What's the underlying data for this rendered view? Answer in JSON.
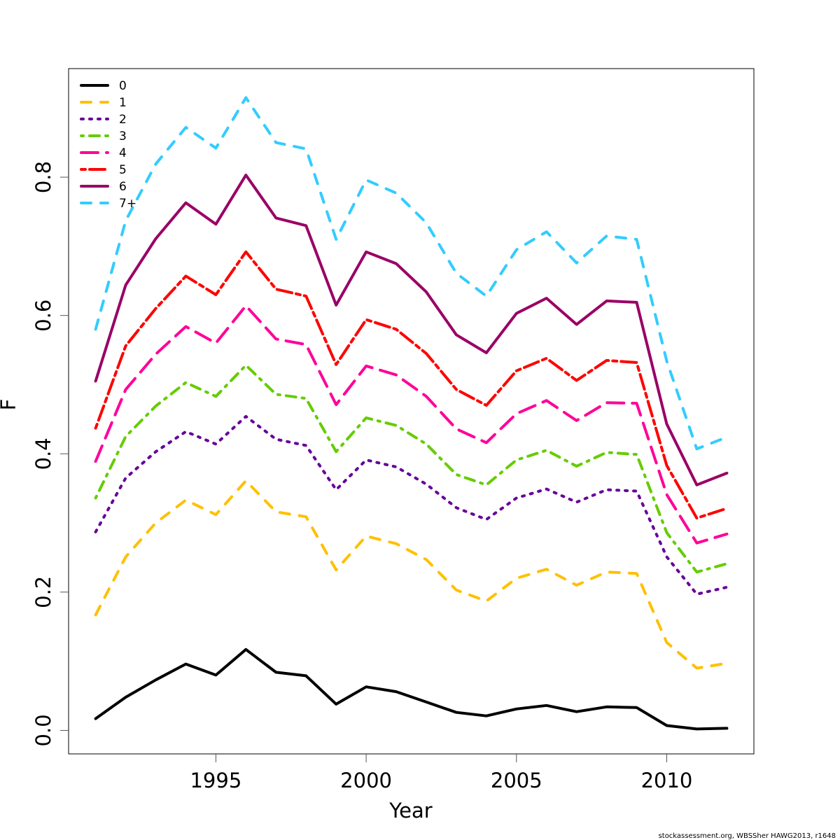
{
  "chart_data": {
    "type": "line",
    "title": "",
    "xlabel": "Year",
    "ylabel": "F",
    "xlim": [
      1990.1,
      2012.9
    ],
    "ylim": [
      -0.034,
      0.957
    ],
    "x_ticks": [
      1995,
      2000,
      2005,
      2010
    ],
    "x_tick_labels": [
      "1995",
      "2000",
      "2005",
      "2010"
    ],
    "y_ticks": [
      0.0,
      0.2,
      0.4,
      0.6,
      0.8
    ],
    "y_tick_labels": [
      "0.0",
      "0.2",
      "0.4",
      "0.6",
      "0.8"
    ],
    "grid": false,
    "legend_position": "top-left",
    "x": [
      1991,
      1992,
      1993,
      1994,
      1995,
      1996,
      1997,
      1998,
      1999,
      2000,
      2001,
      2002,
      2003,
      2004,
      2005,
      2006,
      2007,
      2008,
      2009,
      2010,
      2011,
      2012
    ],
    "series": [
      {
        "name": "0",
        "color": "#000000",
        "dash": "solid",
        "values": [
          0.017,
          0.048,
          0.073,
          0.096,
          0.08,
          0.117,
          0.084,
          0.079,
          0.038,
          0.063,
          0.056,
          0.041,
          0.026,
          0.021,
          0.031,
          0.036,
          0.027,
          0.034,
          0.033,
          0.007,
          0.002,
          0.003
        ]
      },
      {
        "name": "1",
        "color": "#FFC000",
        "dash": "dashed",
        "values": [
          0.167,
          0.251,
          0.3,
          0.333,
          0.312,
          0.361,
          0.316,
          0.309,
          0.232,
          0.281,
          0.27,
          0.247,
          0.203,
          0.187,
          0.22,
          0.233,
          0.21,
          0.229,
          0.227,
          0.127,
          0.09,
          0.097
        ]
      },
      {
        "name": "2",
        "color": "#660099",
        "dash": "dotted",
        "values": [
          0.287,
          0.365,
          0.403,
          0.432,
          0.414,
          0.454,
          0.421,
          0.412,
          0.348,
          0.391,
          0.381,
          0.356,
          0.322,
          0.305,
          0.336,
          0.349,
          0.33,
          0.348,
          0.346,
          0.251,
          0.197,
          0.207
        ]
      },
      {
        "name": "3",
        "color": "#66CC00",
        "dash": "dotdash",
        "values": [
          0.336,
          0.425,
          0.469,
          0.503,
          0.483,
          0.528,
          0.486,
          0.48,
          0.403,
          0.452,
          0.441,
          0.414,
          0.37,
          0.355,
          0.391,
          0.405,
          0.382,
          0.402,
          0.399,
          0.286,
          0.229,
          0.241
        ]
      },
      {
        "name": "4",
        "color": "#FF0099",
        "dash": "longdash",
        "values": [
          0.389,
          0.493,
          0.544,
          0.584,
          0.56,
          0.614,
          0.566,
          0.558,
          0.471,
          0.527,
          0.514,
          0.483,
          0.436,
          0.416,
          0.458,
          0.477,
          0.448,
          0.474,
          0.473,
          0.341,
          0.271,
          0.284
        ]
      },
      {
        "name": "5",
        "color": "#FF0000",
        "dash": "twodash",
        "values": [
          0.437,
          0.556,
          0.61,
          0.657,
          0.63,
          0.692,
          0.638,
          0.628,
          0.529,
          0.594,
          0.58,
          0.545,
          0.493,
          0.47,
          0.52,
          0.538,
          0.506,
          0.535,
          0.532,
          0.383,
          0.307,
          0.321
        ]
      },
      {
        "name": "6",
        "color": "#990066",
        "dash": "solid",
        "values": [
          0.505,
          0.644,
          0.711,
          0.763,
          0.732,
          0.803,
          0.741,
          0.73,
          0.615,
          0.692,
          0.675,
          0.634,
          0.572,
          0.546,
          0.603,
          0.625,
          0.587,
          0.621,
          0.619,
          0.443,
          0.355,
          0.372
        ]
      },
      {
        "name": "7+",
        "color": "#33CCFF",
        "dash": "dashed",
        "values": [
          0.58,
          0.737,
          0.819,
          0.872,
          0.842,
          0.915,
          0.85,
          0.841,
          0.71,
          0.796,
          0.777,
          0.734,
          0.661,
          0.628,
          0.695,
          0.721,
          0.676,
          0.715,
          0.71,
          0.534,
          0.407,
          0.424
        ]
      }
    ]
  },
  "footer": "stockassessment.org, WBSSher  HAWG2013, r1648"
}
